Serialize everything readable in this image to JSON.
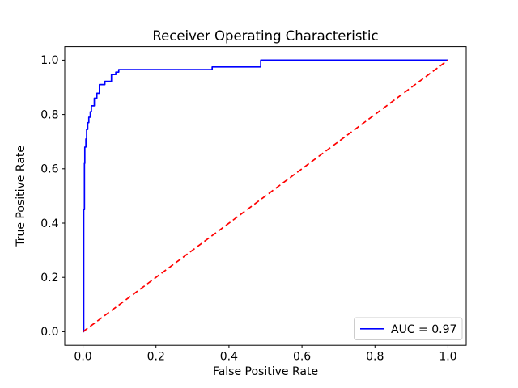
{
  "chart_data": {
    "type": "line",
    "title": "Receiver Operating Characteristic",
    "xlabel": "False Positive Rate",
    "ylabel": "True Positive Rate",
    "xlim": [
      -0.05,
      1.05
    ],
    "ylim": [
      -0.05,
      1.05
    ],
    "grid": false,
    "background_color": "#ffffff",
    "spine_color": "#000000",
    "x_ticks": {
      "values": [
        0.0,
        0.2,
        0.4,
        0.6,
        0.8,
        1.0
      ],
      "labels": [
        "0.0",
        "0.2",
        "0.4",
        "0.6",
        "0.8",
        "1.0"
      ]
    },
    "y_ticks": {
      "values": [
        0.0,
        0.2,
        0.4,
        0.6,
        0.8,
        1.0
      ],
      "labels": [
        "0.0",
        "0.2",
        "0.4",
        "0.6",
        "0.8",
        "1.0"
      ]
    },
    "auc": 0.97,
    "legend": {
      "position": "lower right",
      "border_color": "#cccccc",
      "background_color": "#ffffff",
      "entries": [
        {
          "label": "AUC = 0.97",
          "color": "#0000ff",
          "line_style": "solid"
        }
      ]
    },
    "series": [
      {
        "name": "ROC curve",
        "color": "#0000ff",
        "line_style": "solid",
        "points": [
          [
            0.0,
            0.0
          ],
          [
            0.002,
            0.0
          ],
          [
            0.002,
            0.45
          ],
          [
            0.004,
            0.45
          ],
          [
            0.004,
            0.62
          ],
          [
            0.005,
            0.62
          ],
          [
            0.005,
            0.68
          ],
          [
            0.008,
            0.68
          ],
          [
            0.008,
            0.71
          ],
          [
            0.01,
            0.71
          ],
          [
            0.01,
            0.745
          ],
          [
            0.013,
            0.745
          ],
          [
            0.013,
            0.77
          ],
          [
            0.016,
            0.77
          ],
          [
            0.016,
            0.79
          ],
          [
            0.02,
            0.79
          ],
          [
            0.02,
            0.81
          ],
          [
            0.023,
            0.81
          ],
          [
            0.023,
            0.832
          ],
          [
            0.031,
            0.832
          ],
          [
            0.031,
            0.86
          ],
          [
            0.038,
            0.86
          ],
          [
            0.038,
            0.878
          ],
          [
            0.045,
            0.878
          ],
          [
            0.045,
            0.91
          ],
          [
            0.06,
            0.91
          ],
          [
            0.06,
            0.922
          ],
          [
            0.078,
            0.922
          ],
          [
            0.078,
            0.947
          ],
          [
            0.09,
            0.947
          ],
          [
            0.09,
            0.956
          ],
          [
            0.098,
            0.956
          ],
          [
            0.098,
            0.965
          ],
          [
            0.354,
            0.965
          ],
          [
            0.354,
            0.975
          ],
          [
            0.487,
            0.975
          ],
          [
            0.487,
            1.0
          ],
          [
            1.0,
            1.0
          ]
        ]
      },
      {
        "name": "chance diagonal",
        "color": "#ff0000",
        "line_style": "dashed",
        "points": [
          [
            0.0,
            0.0
          ],
          [
            1.0,
            1.0
          ]
        ]
      }
    ]
  }
}
